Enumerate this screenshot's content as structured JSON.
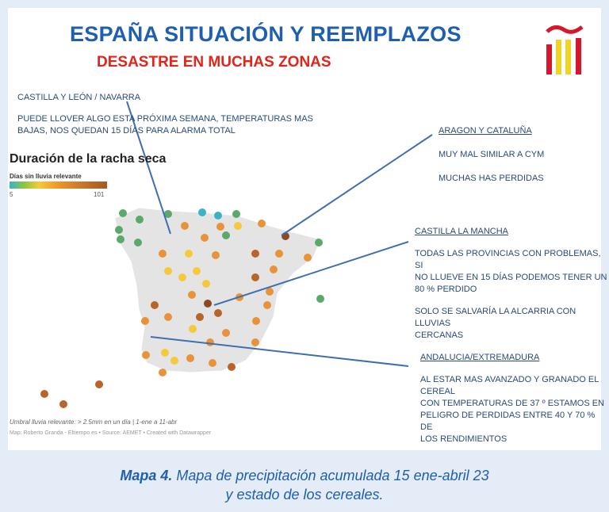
{
  "header": {
    "title": "ESPAÑA SITUACIÓN Y REEMPLAZOS",
    "subtitle": "DESASTRE EN MUCHAS ZONAS"
  },
  "logo": {
    "name": "spanish-flag-logo",
    "colors": {
      "red": "#d4172a",
      "yellow": "#f3d321"
    }
  },
  "notes": {
    "castilla_leon": {
      "heading": "CASTILLA Y LEÓN / NAVARRA",
      "lines": [
        "PUEDE LLOVER ALGO ESTA PRÓXIMA SEMANA, TEMPERATURAS MAS",
        "BAJAS, NOS QUEDAN 15 DÍAS PARA ALARMA TOTAL"
      ]
    },
    "aragon": {
      "heading": "ARAGON Y CATALUÑA",
      "lines": [
        "MUY MAL SIMILAR A CYM",
        "MUCHAS HAS PERDIDAS"
      ]
    },
    "castilla_mancha": {
      "heading": "CASTILLA LA MANCHA",
      "lines": [
        "TODAS LAS PROVINCIAS CON PROBLEMAS, SI",
        "NO LLUEVE EN 15 DÍAS PODEMOS TENER UN",
        "80 % PERDIDO",
        "SOLO SE SALVARÍA LA ALCARRIA CON LLUVIAS",
        "CERCANAS"
      ]
    },
    "andalucia": {
      "heading": "ANDALUCIA/EXTREMADURA",
      "lines": [
        "AL ESTAR MAS AVANZADO Y GRANADO EL",
        "CEREAL",
        "CON TEMPERATURAS DE 37 º ESTAMOS EN",
        "PELIGRO DE PERDIDAS ENTRE 40 Y 70 % DE",
        "LOS RENDIMIENTOS"
      ]
    }
  },
  "map": {
    "title": "Duración de la racha seca",
    "legend_label": "Días sin lluvia relevante",
    "legend_min": "5",
    "legend_max": "101",
    "footnote": "Umbral lluvia relevante: > 2.5mm en un día | 1-ene a 11-abr",
    "credit": "Map: Roberto Granda - Eltiempo.es • Source: AEMET • Created with Datawrapper",
    "colors": {
      "green": "#5aa86a",
      "teal": "#3bb3c6",
      "yellow": "#f5c93a",
      "orange": "#e8923a",
      "brown": "#b8642a",
      "dark": "#8a4a22"
    }
  },
  "caption": {
    "label": "Mapa 4.",
    "line1": " Mapa de precipitación acumulada 15 ene-abril 23",
    "line2": "y estado de los cereales."
  }
}
